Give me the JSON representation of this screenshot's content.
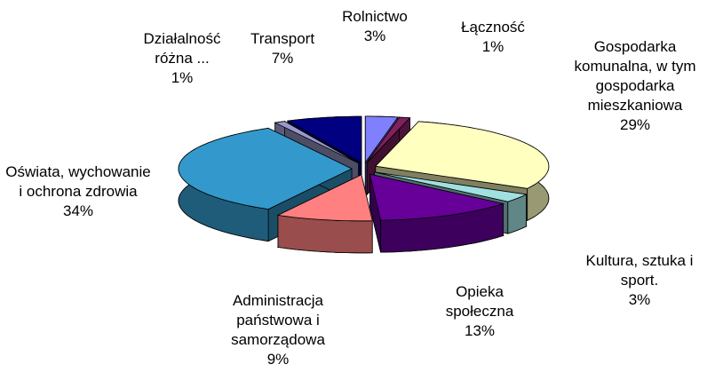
{
  "chart_data": {
    "type": "pie",
    "categories": [
      "Rolnictwo",
      "Łączność",
      "Gospodarka komunalna, w tym gospodarka mieszkaniowa",
      "Kultura, sztuka i sport.",
      "Opieka społeczna",
      "Administracja państwowa i samorządowa",
      "Oświata, wychowanie i ochrona zdrowia",
      "Działalność różna ...",
      "Transport"
    ],
    "values": [
      3,
      1,
      29,
      3,
      13,
      9,
      34,
      1,
      7
    ],
    "value_labels": [
      "3%",
      "1%",
      "29%",
      "3%",
      "13%",
      "9%",
      "34%",
      "1%",
      "7%"
    ],
    "colors": [
      "#8080ff",
      "#802060",
      "#ffffc0",
      "#a0e0e0",
      "#660099",
      "#ff8080",
      "#3399cc",
      "#9999cc",
      "#000080"
    ]
  }
}
